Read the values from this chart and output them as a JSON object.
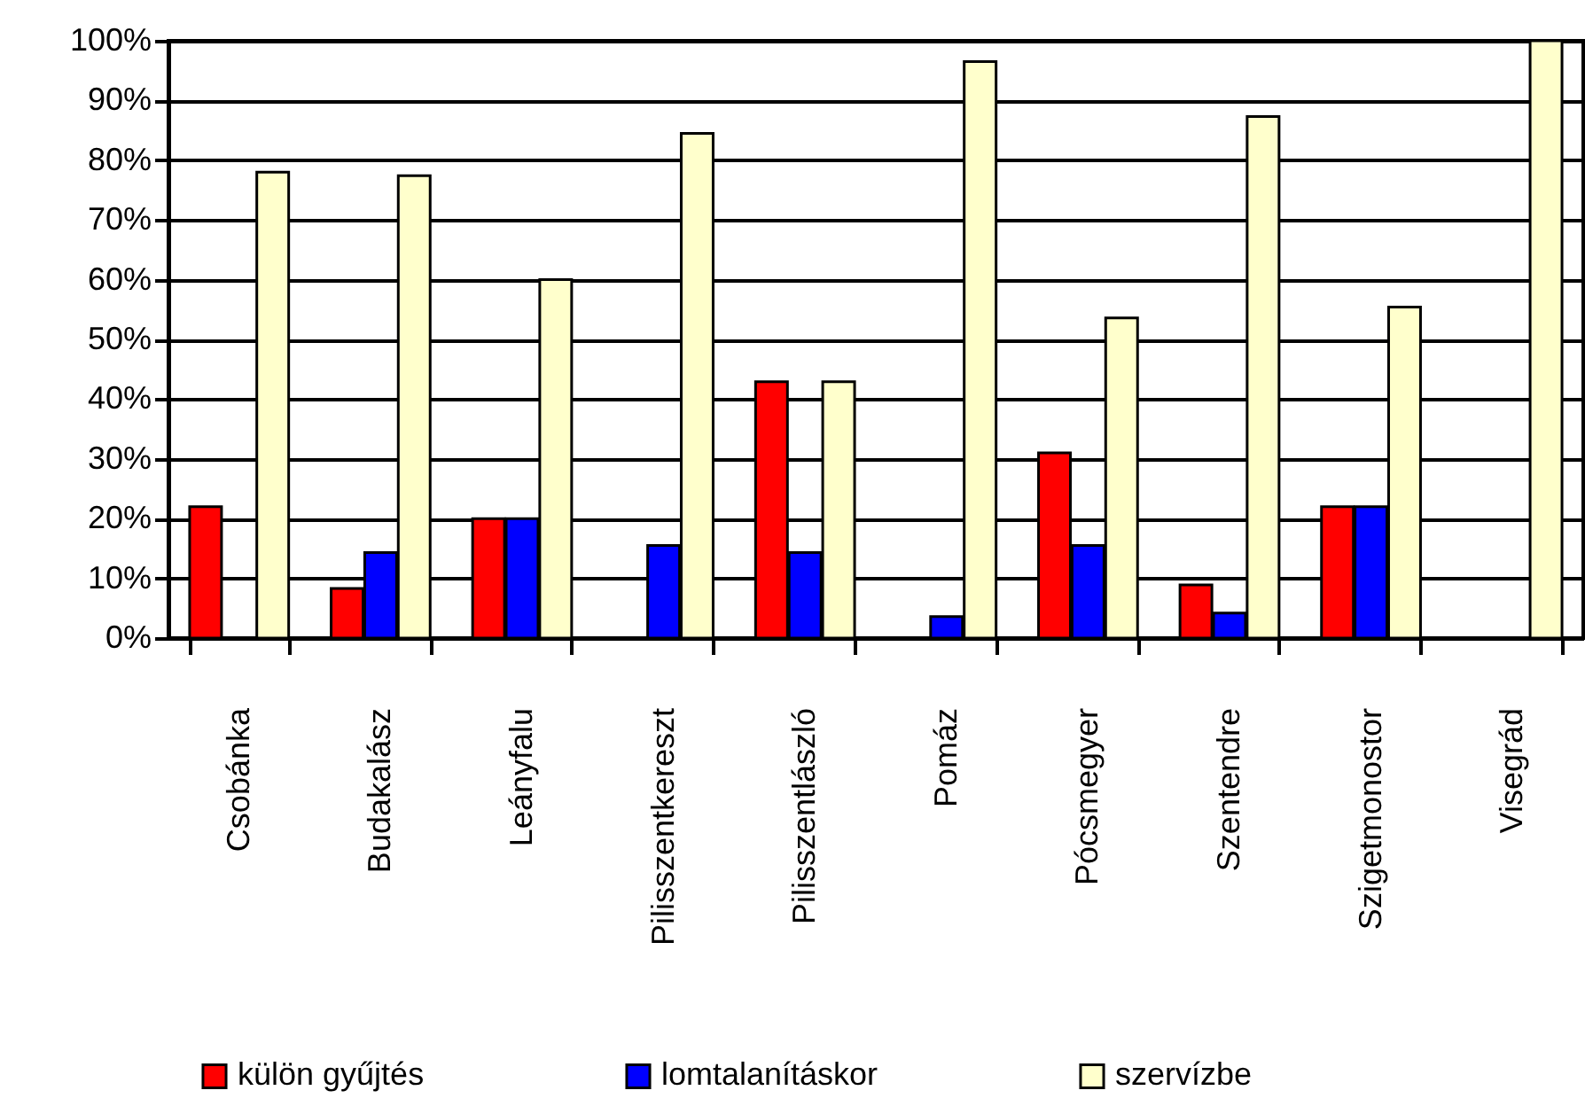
{
  "chart_data": {
    "type": "bar",
    "categories": [
      "Csobánka",
      "Budakalász",
      "Leányfalu",
      "Pilisszentkereszt",
      "Pilisszentlászló",
      "Pomáz",
      "Pócsmegyer",
      "Szentendre",
      "Szigetmonostor",
      "Visegrád"
    ],
    "series": [
      {
        "name": "külön gyűjtés",
        "color": "#ff0000",
        "values": [
          22,
          8.3,
          20,
          null,
          42.9,
          null,
          31,
          8.9,
          22,
          null
        ]
      },
      {
        "name": "lomtalanításkor",
        "color": "#0000ff",
        "values": [
          null,
          14.3,
          20,
          15.5,
          14.3,
          3.6,
          15.5,
          4.2,
          22,
          null
        ]
      },
      {
        "name": "szervízbe",
        "color": "#ffffcc",
        "values": [
          78,
          77.4,
          60,
          84.5,
          42.9,
          96.5,
          53.6,
          87.3,
          55.4,
          100
        ]
      }
    ],
    "ylim": [
      0,
      100
    ],
    "yticks": [
      {
        "value": 0,
        "label": "0%"
      },
      {
        "value": 10,
        "label": "10%"
      },
      {
        "value": 20,
        "label": "20%"
      },
      {
        "value": 30,
        "label": "30%"
      },
      {
        "value": 40,
        "label": "40%"
      },
      {
        "value": 50,
        "label": "50%"
      },
      {
        "value": 60,
        "label": "60%"
      },
      {
        "value": 70,
        "label": "70%"
      },
      {
        "value": 80,
        "label": "80%"
      },
      {
        "value": 90,
        "label": "90%"
      },
      {
        "value": 100,
        "label": "100%"
      }
    ],
    "grid": "y",
    "legend": "bottom"
  }
}
